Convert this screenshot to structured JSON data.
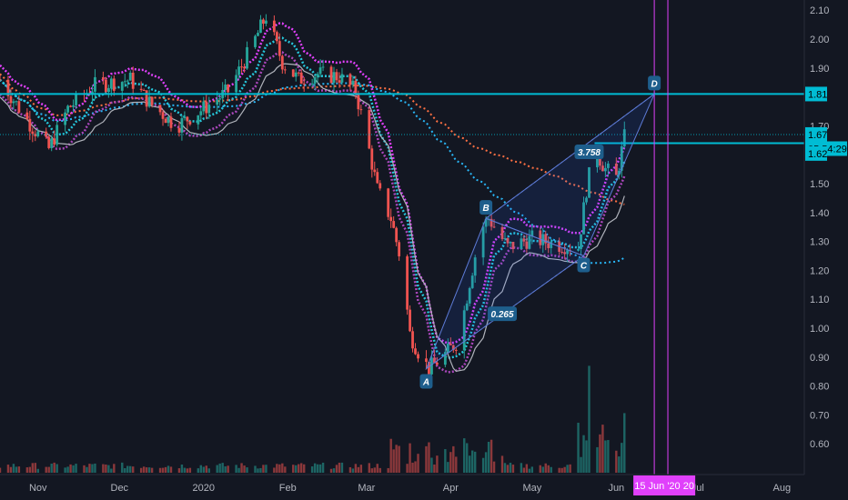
{
  "chart_data": {
    "type": "candlestick",
    "x_axis_labels": [
      "Nov",
      "Dec",
      "2020",
      "Feb",
      "Mar",
      "Apr",
      "May",
      "Jun",
      "Jul",
      "Aug"
    ],
    "x_axis_dates": [
      "2019-11-01",
      "2019-12-01",
      "2020-01-01",
      "2020-02-01",
      "2020-03-01",
      "2020-04-01",
      "2020-05-01",
      "2020-06-01",
      "2020-07-01",
      "2020-08-01"
    ],
    "x_range": [
      "2019-10-18",
      "2020-08-22"
    ],
    "y_ticks": [
      "2.10",
      "2.00",
      "1.90",
      "1.70",
      "1.50",
      "1.40",
      "1.30",
      "1.20",
      "1.10",
      "1.00",
      "0.90",
      "0.80",
      "0.70",
      "0.60"
    ],
    "ylim": [
      0.5,
      2.13
    ],
    "price_tags": [
      {
        "label": "1.81",
        "value": 1.81,
        "color": "#00bcd4"
      },
      {
        "label": "1.67",
        "value": 1.67,
        "color": "#00bcd4"
      },
      {
        "label": "05:54:29",
        "value": 1.64,
        "color": "#00bcd4"
      },
      {
        "label": "1.62",
        "value": 1.62,
        "color": "#00bcd4"
      }
    ],
    "horizontal_lines": [
      1.81,
      1.64
    ],
    "vertical_lines": [
      "2020-06-15",
      "2020-06-20"
    ],
    "date_tag": {
      "label": "15 Jun '20  20",
      "date": "2020-06-15"
    },
    "pattern_points": [
      {
        "label": "A",
        "date": "2020-03-23",
        "value": 0.86
      },
      {
        "label": "B",
        "date": "2020-04-14",
        "value": 1.38
      },
      {
        "label": "C",
        "date": "2020-05-20",
        "value": 1.25
      },
      {
        "label": "D",
        "date": "2020-06-15",
        "value": 1.81
      }
    ],
    "ratio_labels": [
      {
        "label": "0.265",
        "date": "2020-04-20",
        "value": 1.05
      },
      {
        "label": "3.758",
        "date": "2020-05-22",
        "value": 1.61
      }
    ],
    "colors": {
      "up": "#26a69a",
      "down": "#ef5350",
      "accent": "#00bcd4",
      "marker": "#1e5e8c",
      "magenta": "#e040fb"
    }
  }
}
